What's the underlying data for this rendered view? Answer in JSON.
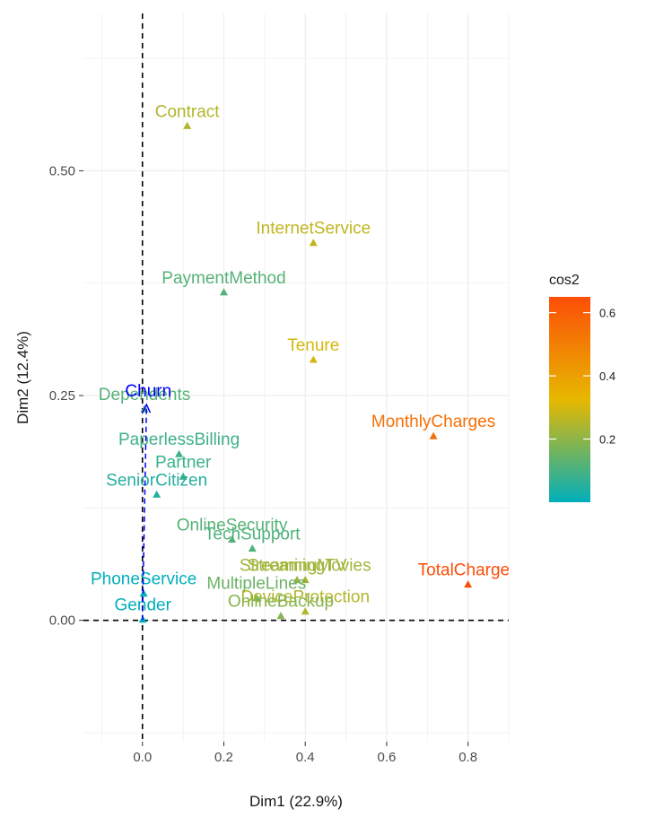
{
  "chart_data": {
    "type": "scatter",
    "title": "",
    "xlabel": "Dim1 (22.9%)",
    "ylabel": "Dim2 (12.4%)",
    "xlim": [
      -0.145,
      0.9
    ],
    "ylim": [
      -0.135,
      0.675
    ],
    "x_ticks": [
      0.0,
      0.2,
      0.4,
      0.6,
      0.8
    ],
    "x_tick_labels": [
      "0.0",
      "0.2",
      "0.4",
      "0.6",
      "0.8"
    ],
    "y_ticks": [
      0.0,
      0.25,
      0.5
    ],
    "y_tick_labels": [
      "0.00",
      "0.25",
      "0.50"
    ],
    "grid": true,
    "reference_lines": {
      "x": 0,
      "y": 0,
      "style": "dashed"
    },
    "legend": {
      "title": "cos2",
      "placement": "right",
      "range": [
        0.0,
        0.65
      ],
      "ticks": [
        0.2,
        0.4,
        0.6
      ],
      "tick_labels": [
        "0.2",
        "0.4",
        "0.6"
      ],
      "gradient": [
        "#00AFBB",
        "#E7B800",
        "#FC4E07"
      ]
    },
    "points": [
      {
        "label": "Contract",
        "x": 0.11,
        "y": 0.55,
        "cos2": 0.25
      },
      {
        "label": "InternetService",
        "x": 0.42,
        "y": 0.42,
        "cos2": 0.27
      },
      {
        "label": "PaymentMethod",
        "x": 0.2,
        "y": 0.365,
        "cos2": 0.12
      },
      {
        "label": "Tenure",
        "x": 0.42,
        "y": 0.29,
        "cos2": 0.3
      },
      {
        "label": "Dependents",
        "x": 0.005,
        "y": 0.235,
        "cos2": 0.12
      },
      {
        "label": "MonthlyCharges",
        "x": 0.715,
        "y": 0.205,
        "cos2": 0.55
      },
      {
        "label": "PaperlessBilling",
        "x": 0.09,
        "y": 0.185,
        "cos2": 0.09
      },
      {
        "label": "Partner",
        "x": 0.1,
        "y": 0.16,
        "cos2": 0.08
      },
      {
        "label": "SeniorCitizen",
        "x": 0.035,
        "y": 0.14,
        "cos2": 0.05
      },
      {
        "label": "OnlineSecurity",
        "x": 0.22,
        "y": 0.09,
        "cos2": 0.12
      },
      {
        "label": "TechSupport",
        "x": 0.27,
        "y": 0.08,
        "cos2": 0.11
      },
      {
        "label": "StreamingMovies",
        "x": 0.4,
        "y": 0.045,
        "cos2": 0.23
      },
      {
        "label": "StreamingTV",
        "x": 0.38,
        "y": 0.045,
        "cos2": 0.22
      },
      {
        "label": "TotalCharges",
        "x": 0.8,
        "y": 0.04,
        "cos2": 0.65
      },
      {
        "label": "MultipleLines",
        "x": 0.28,
        "y": 0.025,
        "cos2": 0.15
      },
      {
        "label": "PhoneService",
        "x": 0.003,
        "y": 0.03,
        "cos2": 0.0
      },
      {
        "label": "DeviceProtection",
        "x": 0.4,
        "y": 0.01,
        "cos2": 0.25
      },
      {
        "label": "OnlineBackup",
        "x": 0.34,
        "y": 0.005,
        "cos2": 0.19
      },
      {
        "label": "Gender",
        "x": 0.001,
        "y": 0.001,
        "cos2": 0.0
      }
    ],
    "supplementary": {
      "label": "Churn",
      "x": 0.01,
      "y": 0.24,
      "color": "#0000FF",
      "arrow": true
    }
  }
}
